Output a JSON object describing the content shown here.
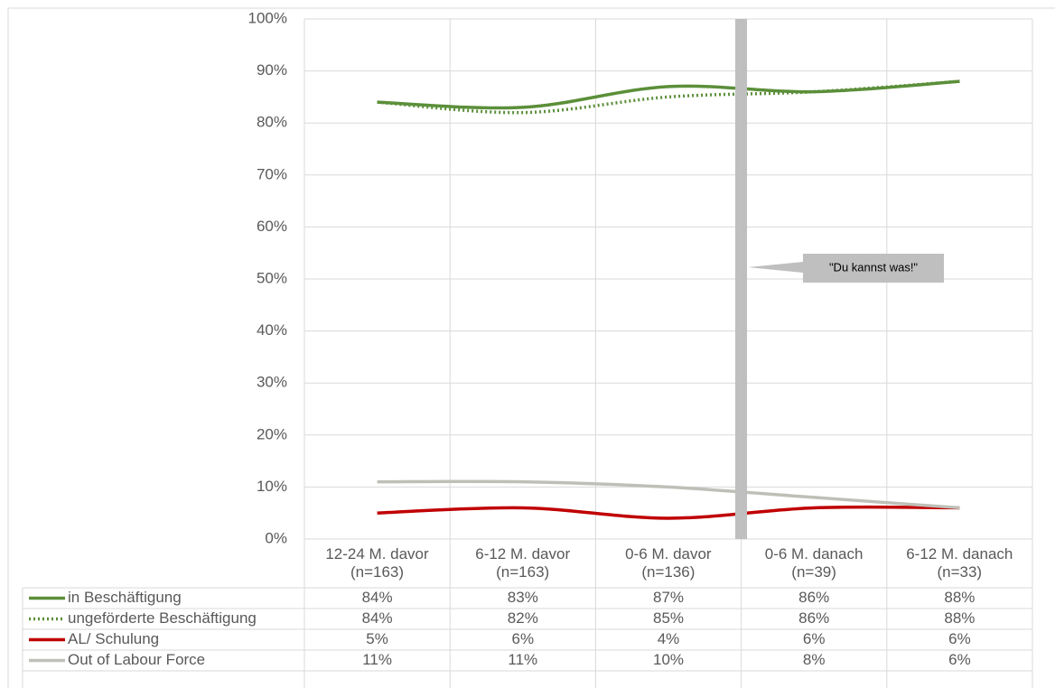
{
  "chart_data": {
    "type": "line",
    "categories": [
      "12-24 M. davor\n(n=163)",
      "6-12 M. davor\n(n=163)",
      "0-6 M. davor\n(n=136)",
      "0-6 M. danach\n(n=39)",
      "6-12 M. danach\n(n=33)"
    ],
    "series": [
      {
        "name": "in Beschäftigung",
        "color": "#5b8f3a",
        "dash": false,
        "values": [
          84,
          83,
          87,
          86,
          88
        ],
        "value_labels": [
          "84%",
          "83%",
          "87%",
          "86%",
          "88%"
        ]
      },
      {
        "name": "ungeförderte Beschäftigung",
        "color": "#5b8f3a",
        "dash": true,
        "values": [
          84,
          82,
          85,
          86,
          88
        ],
        "value_labels": [
          "84%",
          "82%",
          "85%",
          "86%",
          "88%"
        ]
      },
      {
        "name": "AL/ Schulung",
        "color": "#c00000",
        "dash": false,
        "values": [
          5,
          6,
          4,
          6,
          6
        ],
        "value_labels": [
          "5%",
          "6%",
          "4%",
          "6%",
          "6%"
        ]
      },
      {
        "name": "Out of Labour Force",
        "color": "#bfbfb8",
        "dash": false,
        "values": [
          11,
          11,
          10,
          8,
          6
        ],
        "value_labels": [
          "11%",
          "11%",
          "10%",
          "8%",
          "6%"
        ]
      }
    ],
    "ylim": [
      0,
      100
    ],
    "yticks": [
      {
        "value": 0,
        "label": "0%"
      },
      {
        "value": 10,
        "label": "10%"
      },
      {
        "value": 20,
        "label": "20%"
      },
      {
        "value": 30,
        "label": "30%"
      },
      {
        "value": 40,
        "label": "40%"
      },
      {
        "value": 50,
        "label": "50%"
      },
      {
        "value": 60,
        "label": "60%"
      },
      {
        "value": 70,
        "label": "70%"
      },
      {
        "value": 80,
        "label": "80%"
      },
      {
        "value": 90,
        "label": "90%"
      },
      {
        "value": 100,
        "label": "100%"
      }
    ],
    "grid": true,
    "annotation": "\"Du kannst was!\""
  }
}
